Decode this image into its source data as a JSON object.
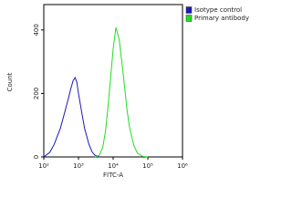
{
  "chart_data": {
    "type": "line",
    "x_label": "FITC-A",
    "y_label": "Count",
    "xscale": "log",
    "x": [
      100,
      150,
      200,
      300,
      400,
      500,
      600,
      700,
      800,
      900,
      1000,
      1200,
      1500,
      2000,
      2500,
      3000,
      4000,
      5000,
      6000,
      7000,
      8000,
      10000,
      12000,
      15000,
      20000,
      25000,
      30000,
      40000,
      50000,
      70000,
      100000
    ],
    "series": [
      {
        "name": "Isotype control",
        "color": "#1a1ab8",
        "values": [
          0,
          15,
          40,
          90,
          140,
          180,
          215,
          240,
          250,
          235,
          200,
          150,
          90,
          40,
          15,
          5,
          0,
          null,
          null,
          null,
          null,
          null,
          null,
          null,
          null,
          null,
          null,
          null,
          null,
          null,
          null
        ]
      },
      {
        "name": "Primary antibody",
        "color": "#22dd22",
        "values": [
          null,
          null,
          null,
          null,
          null,
          null,
          null,
          null,
          null,
          null,
          null,
          null,
          null,
          null,
          null,
          0,
          5,
          30,
          80,
          150,
          220,
          340,
          408,
          370,
          250,
          150,
          90,
          35,
          12,
          2,
          0
        ]
      }
    ],
    "xlim": [
      100,
      1000000
    ],
    "xticks": [
      {
        "value": 100,
        "label": "10²"
      },
      {
        "value": 1000,
        "label": "10³"
      },
      {
        "value": 10000,
        "label": "10⁴"
      },
      {
        "value": 100000,
        "label": "10⁵"
      },
      {
        "value": 1000000,
        "label": "10⁶"
      }
    ],
    "ylim": [
      0,
      480
    ],
    "yticks": [
      0,
      200,
      400
    ],
    "legend": "top-right"
  }
}
